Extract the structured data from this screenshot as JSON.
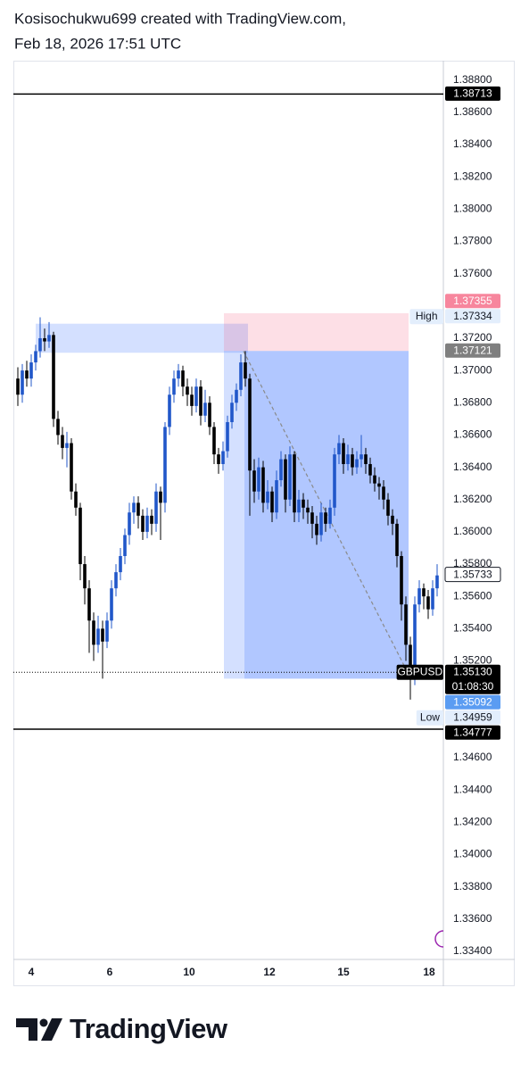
{
  "chart_data": {
    "type": "candlestick",
    "title": "Kosisochukwu699 created with TradingView.com,",
    "subtitle": "Feb 18, 2026 17:51 UTC",
    "brand": "TradingView",
    "up_color": "#2157c9",
    "down_color": "#000000",
    "x": [
      0,
      1,
      2,
      3,
      4,
      5,
      6,
      7,
      8,
      9,
      10,
      11,
      12,
      13,
      14,
      15,
      16,
      17,
      18,
      19,
      20,
      21,
      22,
      23,
      24,
      25,
      26,
      27,
      28,
      29,
      30,
      31,
      32,
      33,
      34,
      35,
      36,
      37,
      38,
      39,
      40,
      41,
      42,
      43,
      44,
      45,
      46,
      47,
      48,
      49,
      50,
      51,
      52,
      53,
      54,
      55,
      56,
      57,
      58,
      59,
      60,
      61,
      62,
      63,
      64,
      65,
      66,
      67,
      68,
      69,
      70,
      71,
      72,
      73,
      74,
      75,
      76,
      77,
      78,
      79,
      80,
      81,
      82,
      83,
      84,
      85,
      86,
      87,
      88,
      89,
      90,
      91,
      92,
      93,
      94
    ],
    "open": [
      1.3695,
      1.3685,
      1.37,
      1.3695,
      1.3705,
      1.3712,
      1.372,
      1.3718,
      1.3722,
      1.367,
      1.366,
      1.3652,
      1.3655,
      1.3625,
      1.3615,
      1.358,
      1.3565,
      1.3545,
      1.353,
      1.354,
      1.3532,
      1.3545,
      1.3565,
      1.3575,
      1.3585,
      1.3598,
      1.3612,
      1.3618,
      1.361,
      1.36,
      1.361,
      1.3605,
      1.3625,
      1.3618,
      1.3665,
      1.3685,
      1.3695,
      1.37,
      1.369,
      1.3685,
      1.3678,
      1.369,
      1.3672,
      1.368,
      1.3665,
      1.3648,
      1.3642,
      1.365,
      1.3668,
      1.368,
      1.3688,
      1.3705,
      1.3695,
      1.3638,
      1.3625,
      1.364,
      1.3618,
      1.3625,
      1.3612,
      1.3632,
      1.3645,
      1.362,
      1.3648,
      1.3612,
      1.362,
      1.3615,
      1.3612,
      1.3605,
      1.3598,
      1.3612,
      1.3605,
      1.3615,
      1.3648,
      1.3655,
      1.3642,
      1.3648,
      1.364,
      1.3645,
      1.3648,
      1.3642,
      1.3635,
      1.363,
      1.3628,
      1.362,
      1.361,
      1.3605,
      1.3585,
      1.3555,
      1.353,
      1.3515,
      1.3555,
      1.3565,
      1.356,
      1.3552,
      1.3565
    ],
    "high": [
      1.3702,
      1.3704,
      1.3706,
      1.371,
      1.3716,
      1.3733,
      1.3726,
      1.373,
      1.3724,
      1.3675,
      1.3665,
      1.3662,
      1.3658,
      1.363,
      1.3618,
      1.3585,
      1.357,
      1.355,
      1.3548,
      1.3545,
      1.355,
      1.357,
      1.358,
      1.359,
      1.3602,
      1.3618,
      1.3622,
      1.3622,
      1.3614,
      1.3615,
      1.3614,
      1.363,
      1.3628,
      1.3668,
      1.369,
      1.37,
      1.3704,
      1.3703,
      1.3695,
      1.369,
      1.3695,
      1.3694,
      1.3688,
      1.3684,
      1.3668,
      1.3652,
      1.3656,
      1.3672,
      1.3685,
      1.3692,
      1.371,
      1.3712,
      1.3698,
      1.3645,
      1.3646,
      1.3644,
      1.3632,
      1.3628,
      1.3638,
      1.365,
      1.3648,
      1.3653,
      1.365,
      1.3626,
      1.3624,
      1.362,
      1.3616,
      1.361,
      1.3618,
      1.3615,
      1.362,
      1.3652,
      1.366,
      1.3658,
      1.3654,
      1.3652,
      1.365,
      1.366,
      1.3652,
      1.3646,
      1.364,
      1.3634,
      1.3632,
      1.3624,
      1.3614,
      1.3608,
      1.3588,
      1.356,
      1.3535,
      1.356,
      1.357,
      1.3568,
      1.3564,
      1.357,
      1.358
    ],
    "low": [
      1.3678,
      1.368,
      1.369,
      1.369,
      1.37,
      1.3708,
      1.3712,
      1.3714,
      1.3665,
      1.3654,
      1.3645,
      1.364,
      1.362,
      1.361,
      1.357,
      1.3555,
      1.3525,
      1.352,
      1.3525,
      1.3509,
      1.3528,
      1.354,
      1.356,
      1.357,
      1.358,
      1.3592,
      1.3605,
      1.3602,
      1.3595,
      1.3596,
      1.3598,
      1.36,
      1.3595,
      1.3612,
      1.366,
      1.368,
      1.369,
      1.3684,
      1.3678,
      1.3672,
      1.3674,
      1.3666,
      1.3668,
      1.366,
      1.3642,
      1.3636,
      1.3638,
      1.3646,
      1.3664,
      1.3675,
      1.3684,
      1.369,
      1.361,
      1.3618,
      1.362,
      1.3612,
      1.3614,
      1.3606,
      1.3608,
      1.3628,
      1.3612,
      1.3616,
      1.3606,
      1.3606,
      1.3608,
      1.3605,
      1.3596,
      1.3592,
      1.3594,
      1.36,
      1.3602,
      1.361,
      1.3642,
      1.3636,
      1.3638,
      1.3635,
      1.3636,
      1.364,
      1.3636,
      1.363,
      1.3625,
      1.362,
      1.3614,
      1.3604,
      1.3598,
      1.3578,
      1.3545,
      1.352,
      1.3496,
      1.3505,
      1.355,
      1.3552,
      1.3546,
      1.3548,
      1.356
    ],
    "close": [
      1.3685,
      1.37,
      1.3695,
      1.3705,
      1.3712,
      1.372,
      1.3718,
      1.3722,
      1.367,
      1.366,
      1.3652,
      1.3655,
      1.3625,
      1.3615,
      1.358,
      1.3565,
      1.3545,
      1.353,
      1.354,
      1.3532,
      1.3545,
      1.3565,
      1.3575,
      1.3585,
      1.3598,
      1.3612,
      1.3618,
      1.361,
      1.36,
      1.361,
      1.3605,
      1.3625,
      1.3618,
      1.3665,
      1.3685,
      1.3695,
      1.37,
      1.369,
      1.3685,
      1.3678,
      1.369,
      1.3672,
      1.368,
      1.3665,
      1.3648,
      1.3642,
      1.365,
      1.3668,
      1.368,
      1.3688,
      1.3705,
      1.3695,
      1.3638,
      1.3625,
      1.364,
      1.3618,
      1.3625,
      1.3612,
      1.3632,
      1.3645,
      1.362,
      1.3648,
      1.3612,
      1.362,
      1.3615,
      1.3612,
      1.3605,
      1.3598,
      1.3612,
      1.3605,
      1.3615,
      1.3648,
      1.3655,
      1.3642,
      1.3648,
      1.364,
      1.3645,
      1.3648,
      1.3642,
      1.3635,
      1.363,
      1.3628,
      1.362,
      1.361,
      1.3605,
      1.3585,
      1.3555,
      1.353,
      1.3515,
      1.3555,
      1.3565,
      1.356,
      1.3552,
      1.3565,
      1.3573
    ],
    "xlim": [
      -1,
      95.4
    ],
    "xticks": [
      {
        "value": 3,
        "label": "4"
      },
      {
        "value": 20.6,
        "label": "6"
      },
      {
        "value": 38.4,
        "label": "10"
      },
      {
        "value": 56.4,
        "label": "12"
      },
      {
        "value": 73,
        "label": "15"
      },
      {
        "value": 92.2,
        "label": "18"
      }
    ],
    "ylim": [
      1.3335,
      1.3892
    ],
    "yticks": [
      {
        "value": 1.388,
        "label": "1.38800"
      },
      {
        "value": 1.386,
        "label": "1.38600"
      },
      {
        "value": 1.384,
        "label": "1.38400"
      },
      {
        "value": 1.382,
        "label": "1.38200"
      },
      {
        "value": 1.38,
        "label": "1.38000"
      },
      {
        "value": 1.378,
        "label": "1.37800"
      },
      {
        "value": 1.376,
        "label": "1.37600"
      },
      {
        "value": 1.372,
        "label": "1.37200"
      },
      {
        "value": 1.37,
        "label": "1.37000"
      },
      {
        "value": 1.368,
        "label": "1.36800"
      },
      {
        "value": 1.366,
        "label": "1.36600"
      },
      {
        "value": 1.364,
        "label": "1.36400"
      },
      {
        "value": 1.362,
        "label": "1.36200"
      },
      {
        "value": 1.36,
        "label": "1.36000"
      },
      {
        "value": 1.358,
        "label": "1.35800"
      },
      {
        "value": 1.356,
        "label": "1.35600"
      },
      {
        "value": 1.354,
        "label": "1.35400"
      },
      {
        "value": 1.352,
        "label": "1.35200"
      },
      {
        "value": 1.346,
        "label": "1.34600"
      },
      {
        "value": 1.344,
        "label": "1.34400"
      },
      {
        "value": 1.342,
        "label": "1.34200"
      },
      {
        "value": 1.34,
        "label": "1.34000"
      },
      {
        "value": 1.338,
        "label": "1.33800"
      },
      {
        "value": 1.336,
        "label": "1.33600"
      },
      {
        "value": 1.334,
        "label": "1.33400"
      }
    ],
    "price_labels": [
      {
        "value": 1.38713,
        "label": "1.38713",
        "bg": "#000000",
        "fg": "#ffffff",
        "line": "solid"
      },
      {
        "value": 1.37355,
        "label": "1.37355",
        "bg": "#f7869d",
        "fg": "#ffffff"
      },
      {
        "value": 1.37334,
        "label": "1.37334",
        "tag": "High",
        "bg": "#e3eefc",
        "fg": "#131722"
      },
      {
        "value": 1.37121,
        "label": "1.37121",
        "bg": "#7f7f7f",
        "fg": "#ffffff"
      },
      {
        "value": 1.35733,
        "label": "1.35733",
        "bg": "#ffffff",
        "fg": "#131722",
        "border": "#131722"
      },
      {
        "value": 1.3513,
        "label": "1.35130",
        "tag": "GBPUSD",
        "sub": "01:08:30",
        "bg": "#000000",
        "fg": "#ffffff",
        "line": "dotted"
      },
      {
        "value": 1.35092,
        "label": "1.35092",
        "bg": "#5b9cf2",
        "fg": "#ffffff"
      },
      {
        "value": 1.34959,
        "label": "1.34959",
        "tag": "Low",
        "bg": "#e3eefc",
        "fg": "#131722"
      },
      {
        "value": 1.34777,
        "label": "1.34777",
        "bg": "#000000",
        "fg": "#ffffff",
        "line": "solid"
      }
    ],
    "zones": [
      {
        "x": [
          4,
          51.6
        ],
        "top": 1.3729,
        "bottom": 1.3711,
        "color": "rgba(41,98,255,0.2)"
      },
      {
        "x": [
          46.2,
          87.6
        ],
        "top": 1.37355,
        "bottom": 1.37121,
        "color": "rgba(242,54,100,0.16)"
      },
      {
        "x": [
          46.2,
          87.6
        ],
        "top": 1.37121,
        "bottom": 1.3509,
        "color": "rgba(41,98,255,0.2)"
      },
      {
        "x": [
          50.8,
          87.6
        ],
        "top": 1.37121,
        "bottom": 1.3509,
        "color": "rgba(41,98,255,0.2)"
      }
    ],
    "guide": {
      "x": [
        50.6,
        87
      ],
      "y": [
        1.3712,
        1.3515
      ],
      "color": "#8a8a8a"
    }
  }
}
